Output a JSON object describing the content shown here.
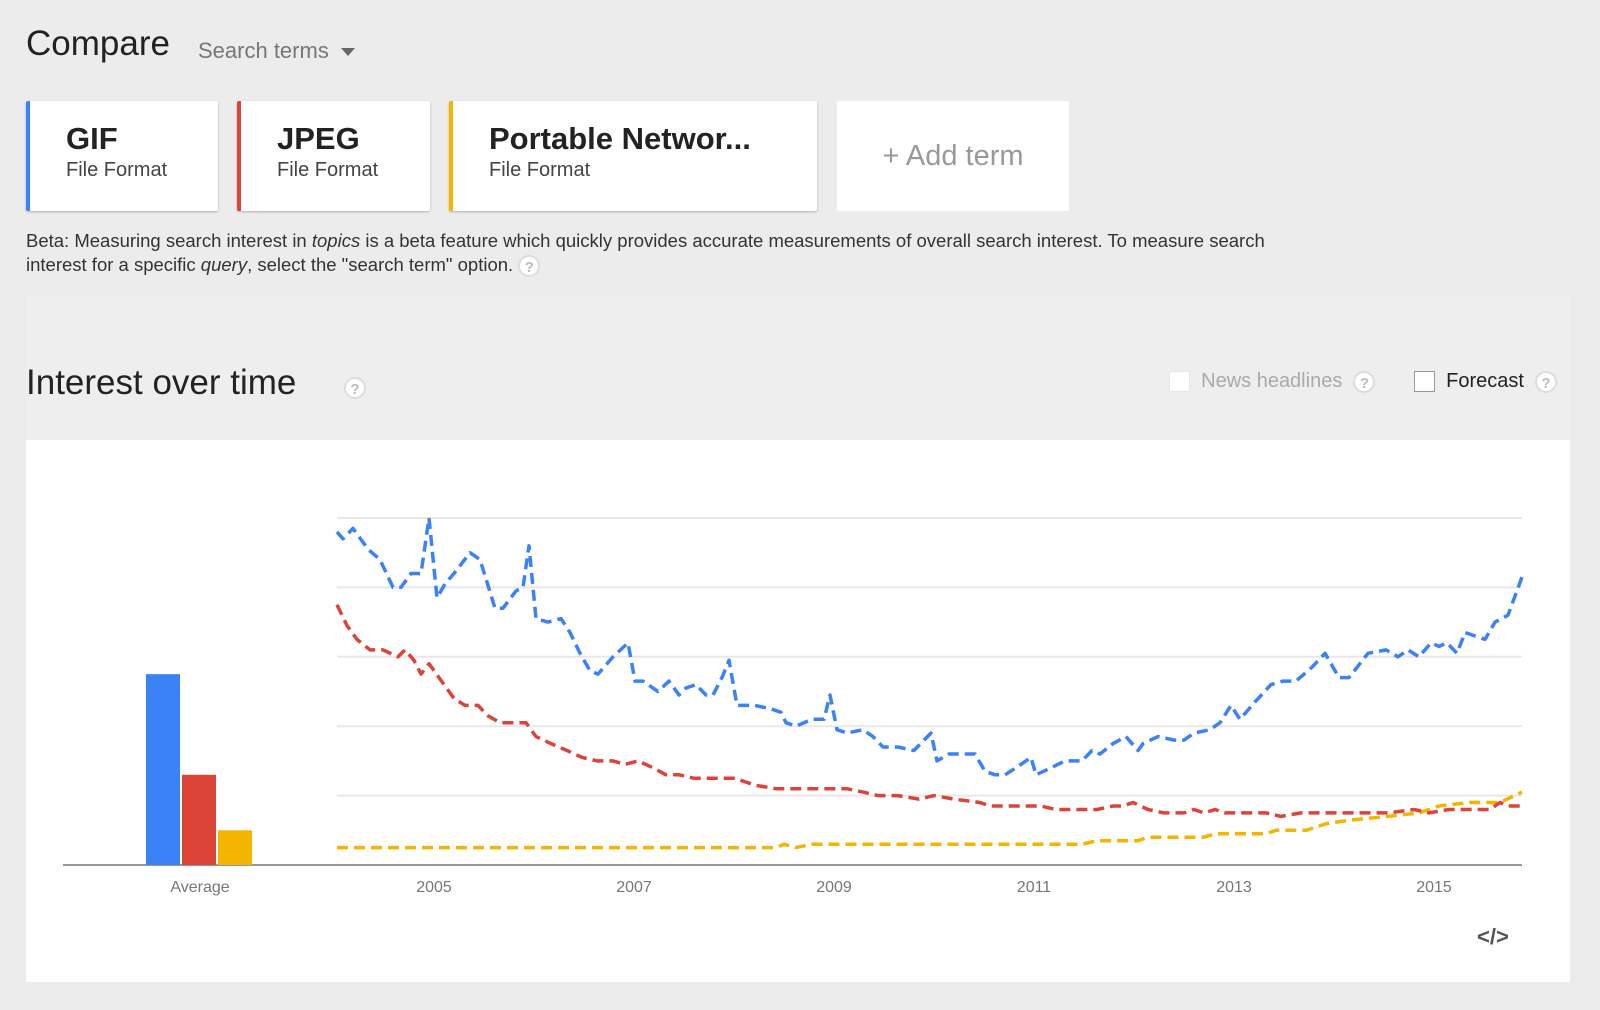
{
  "header": {
    "title": "Compare",
    "mode_label": "Search terms"
  },
  "terms": [
    {
      "name": "GIF",
      "type": "File Format",
      "color": "#3b82f6"
    },
    {
      "name": "JPEG",
      "type": "File Format",
      "color": "#db4437"
    },
    {
      "name": "Portable Networ...",
      "type": "File Format",
      "color": "#f4b400"
    }
  ],
  "add_term_label": "+ Add term",
  "beta": {
    "prefix": "Beta: Measuring search interest in ",
    "topics": "topics",
    "middle": " is a beta feature which quickly provides accurate measurements of overall search interest. To measure search interest for a specific ",
    "query": "query",
    "suffix": ", select the \"search term\" option."
  },
  "section": {
    "title": "Interest over time",
    "news_label": "News headlines",
    "forecast_label": "Forecast",
    "help_glyph": "?",
    "embed_glyph": "</>"
  },
  "chart_data": {
    "type": "line",
    "title": "Interest over time",
    "ylim": [
      0,
      100
    ],
    "yticks": [
      0,
      20,
      40,
      60,
      80,
      100
    ],
    "grid": true,
    "xlim": [
      2004.03,
      2015.88
    ],
    "xticks": [
      2005,
      2007,
      2009,
      2011,
      2013,
      2015
    ],
    "xtick_labels": [
      "2005",
      "2007",
      "2009",
      "2011",
      "2013",
      "2015"
    ],
    "average": {
      "label": "Average",
      "values": [
        55,
        26,
        10
      ]
    },
    "series": [
      {
        "name": "GIF",
        "color": "#3b82f6",
        "points": [
          [
            2004.03,
            96
          ],
          [
            2004.09,
            94
          ],
          [
            2004.19,
            97
          ],
          [
            2004.34,
            91
          ],
          [
            2004.46,
            88
          ],
          [
            2004.59,
            80
          ],
          [
            2004.67,
            80
          ],
          [
            2004.77,
            84
          ],
          [
            2004.87,
            84
          ],
          [
            2004.95,
            100
          ],
          [
            2005.03,
            77
          ],
          [
            2005.11,
            81
          ],
          [
            2005.2,
            84
          ],
          [
            2005.36,
            90
          ],
          [
            2005.46,
            88
          ],
          [
            2005.61,
            74
          ],
          [
            2005.69,
            74
          ],
          [
            2005.82,
            79
          ],
          [
            2005.89,
            80
          ],
          [
            2005.95,
            92
          ],
          [
            2006.02,
            71
          ],
          [
            2006.14,
            70
          ],
          [
            2006.27,
            71
          ],
          [
            2006.36,
            67
          ],
          [
            2006.46,
            61
          ],
          [
            2006.56,
            56
          ],
          [
            2006.64,
            55
          ],
          [
            2006.79,
            60
          ],
          [
            2006.94,
            64
          ],
          [
            2007.01,
            53
          ],
          [
            2007.09,
            53
          ],
          [
            2007.24,
            50
          ],
          [
            2007.35,
            53
          ],
          [
            2007.45,
            49
          ],
          [
            2007.52,
            51
          ],
          [
            2007.62,
            52
          ],
          [
            2007.72,
            49
          ],
          [
            2007.79,
            49
          ],
          [
            2007.88,
            54
          ],
          [
            2007.95,
            59
          ],
          [
            2008.03,
            46
          ],
          [
            2008.11,
            46
          ],
          [
            2008.21,
            46
          ],
          [
            2008.37,
            45
          ],
          [
            2008.47,
            44
          ],
          [
            2008.52,
            41
          ],
          [
            2008.62,
            40
          ],
          [
            2008.78,
            42
          ],
          [
            2008.9,
            42
          ],
          [
            2008.96,
            49
          ],
          [
            2009.03,
            39
          ],
          [
            2009.13,
            38
          ],
          [
            2009.29,
            39
          ],
          [
            2009.39,
            37
          ],
          [
            2009.49,
            34
          ],
          [
            2009.64,
            34
          ],
          [
            2009.8,
            33
          ],
          [
            2009.9,
            36
          ],
          [
            2009.97,
            38
          ],
          [
            2010.03,
            30
          ],
          [
            2010.15,
            32
          ],
          [
            2010.31,
            32
          ],
          [
            2010.41,
            32
          ],
          [
            2010.51,
            27
          ],
          [
            2010.61,
            26
          ],
          [
            2010.71,
            26
          ],
          [
            2010.82,
            28
          ],
          [
            2010.97,
            31
          ],
          [
            2011.02,
            26
          ],
          [
            2011.17,
            28
          ],
          [
            2011.31,
            30
          ],
          [
            2011.48,
            30
          ],
          [
            2011.58,
            33
          ],
          [
            2011.66,
            32
          ],
          [
            2011.79,
            35
          ],
          [
            2011.92,
            37
          ],
          [
            2012.04,
            33
          ],
          [
            2012.09,
            35
          ],
          [
            2012.24,
            37
          ],
          [
            2012.4,
            36
          ],
          [
            2012.5,
            36
          ],
          [
            2012.6,
            38
          ],
          [
            2012.76,
            39
          ],
          [
            2012.86,
            41
          ],
          [
            2012.97,
            46
          ],
          [
            2013.06,
            42
          ],
          [
            2013.21,
            47
          ],
          [
            2013.37,
            52
          ],
          [
            2013.49,
            53
          ],
          [
            2013.62,
            53
          ],
          [
            2013.78,
            57
          ],
          [
            2013.91,
            61
          ],
          [
            2014.05,
            54
          ],
          [
            2014.15,
            54
          ],
          [
            2014.34,
            61
          ],
          [
            2014.52,
            62
          ],
          [
            2014.64,
            60
          ],
          [
            2014.74,
            62
          ],
          [
            2014.85,
            60
          ],
          [
            2014.97,
            64
          ],
          [
            2015.05,
            63
          ],
          [
            2015.13,
            64
          ],
          [
            2015.23,
            61
          ],
          [
            2015.31,
            67
          ],
          [
            2015.41,
            66
          ],
          [
            2015.51,
            65
          ],
          [
            2015.61,
            70
          ],
          [
            2015.74,
            72
          ],
          [
            2015.88,
            83
          ]
        ]
      },
      {
        "name": "JPEG",
        "color": "#db4437",
        "points": [
          [
            2004.03,
            75
          ],
          [
            2004.13,
            69
          ],
          [
            2004.23,
            65
          ],
          [
            2004.36,
            62
          ],
          [
            2004.49,
            62
          ],
          [
            2004.64,
            60
          ],
          [
            2004.71,
            62
          ],
          [
            2004.8,
            59
          ],
          [
            2004.87,
            55
          ],
          [
            2004.95,
            58
          ],
          [
            2005.05,
            54
          ],
          [
            2005.2,
            48
          ],
          [
            2005.31,
            46
          ],
          [
            2005.44,
            46
          ],
          [
            2005.54,
            43
          ],
          [
            2005.66,
            41
          ],
          [
            2005.82,
            41
          ],
          [
            2005.92,
            41
          ],
          [
            2006.02,
            37
          ],
          [
            2006.17,
            35
          ],
          [
            2006.33,
            33
          ],
          [
            2006.48,
            31
          ],
          [
            2006.63,
            30
          ],
          [
            2006.79,
            30
          ],
          [
            2006.91,
            29
          ],
          [
            2007.04,
            30
          ],
          [
            2007.19,
            28
          ],
          [
            2007.32,
            26
          ],
          [
            2007.45,
            26
          ],
          [
            2007.6,
            25
          ],
          [
            2007.81,
            25
          ],
          [
            2008.01,
            25
          ],
          [
            2008.21,
            23
          ],
          [
            2008.42,
            22
          ],
          [
            2008.83,
            22
          ],
          [
            2009.13,
            22
          ],
          [
            2009.29,
            21
          ],
          [
            2009.44,
            20
          ],
          [
            2009.64,
            20
          ],
          [
            2009.85,
            19
          ],
          [
            2010.0,
            20
          ],
          [
            2010.2,
            19
          ],
          [
            2010.46,
            18
          ],
          [
            2010.56,
            17
          ],
          [
            2010.87,
            17
          ],
          [
            2011.07,
            17
          ],
          [
            2011.22,
            16
          ],
          [
            2011.48,
            16
          ],
          [
            2011.63,
            16
          ],
          [
            2011.79,
            17
          ],
          [
            2011.89,
            17
          ],
          [
            2011.99,
            18
          ],
          [
            2012.14,
            16
          ],
          [
            2012.3,
            15
          ],
          [
            2012.5,
            15
          ],
          [
            2012.6,
            16
          ],
          [
            2012.7,
            15
          ],
          [
            2012.81,
            16
          ],
          [
            2012.91,
            15
          ],
          [
            2013.32,
            15
          ],
          [
            2013.47,
            14
          ],
          [
            2013.67,
            15
          ],
          [
            2013.93,
            15
          ],
          [
            2014.23,
            15
          ],
          [
            2014.54,
            15
          ],
          [
            2014.8,
            16
          ],
          [
            2014.95,
            15
          ],
          [
            2015.15,
            16
          ],
          [
            2015.56,
            16
          ],
          [
            2015.66,
            18
          ],
          [
            2015.74,
            17
          ],
          [
            2015.88,
            17
          ]
        ]
      },
      {
        "name": "Portable Network Graphics",
        "color": "#f4b400",
        "points": [
          [
            2004.03,
            5
          ],
          [
            2008.42,
            5
          ],
          [
            2008.5,
            6
          ],
          [
            2008.62,
            5
          ],
          [
            2008.78,
            6
          ],
          [
            2011.48,
            6
          ],
          [
            2011.63,
            7
          ],
          [
            2012.04,
            7
          ],
          [
            2012.14,
            8
          ],
          [
            2012.7,
            8
          ],
          [
            2012.81,
            9
          ],
          [
            2013.32,
            9
          ],
          [
            2013.42,
            10
          ],
          [
            2013.72,
            10
          ],
          [
            2013.93,
            12
          ],
          [
            2014.18,
            13
          ],
          [
            2014.54,
            14
          ],
          [
            2014.85,
            15
          ],
          [
            2015.05,
            17
          ],
          [
            2015.36,
            18
          ],
          [
            2015.66,
            18
          ],
          [
            2015.88,
            21
          ]
        ]
      }
    ]
  }
}
